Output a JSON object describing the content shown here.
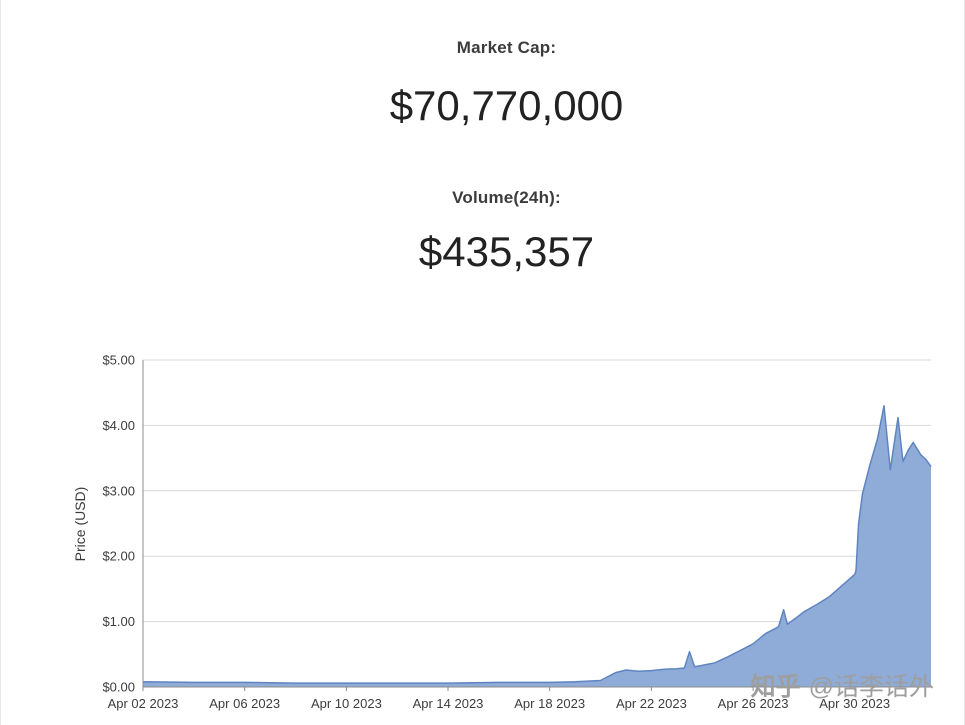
{
  "stats": {
    "market_cap_label": "Market Cap:",
    "market_cap_value": "$70,770,000",
    "volume_label": "Volume(24h):",
    "volume_value": "$435,357"
  },
  "watermark": {
    "logo": "知乎",
    "handle": "@话李话外"
  },
  "chart_data": {
    "type": "area",
    "title": "",
    "xlabel": "",
    "ylabel": "Price (USD)",
    "ylim": [
      0,
      5
    ],
    "x_range": [
      0,
      31
    ],
    "grid": true,
    "legend": "none",
    "series_name": "Price",
    "line_color": "#5f85c0",
    "fill_color": "#8fabd7",
    "grid_color": "#d9d9d9",
    "axis_color": "#8c8c8c",
    "y_ticks": [
      {
        "v": 0,
        "label": "$0.00"
      },
      {
        "v": 1,
        "label": "$1.00"
      },
      {
        "v": 2,
        "label": "$2.00"
      },
      {
        "v": 3,
        "label": "$3.00"
      },
      {
        "v": 4,
        "label": "$4.00"
      },
      {
        "v": 5,
        "label": "$5.00"
      }
    ],
    "x_ticks": [
      {
        "v": 0,
        "label": "Apr 02 2023"
      },
      {
        "v": 4,
        "label": "Apr 06 2023"
      },
      {
        "v": 8,
        "label": "Apr 10 2023"
      },
      {
        "v": 12,
        "label": "Apr 14 2023"
      },
      {
        "v": 16,
        "label": "Apr 18 2023"
      },
      {
        "v": 20,
        "label": "Apr 22 2023"
      },
      {
        "v": 24,
        "label": "Apr 26 2023"
      },
      {
        "v": 28,
        "label": "Apr 30 2023"
      }
    ],
    "points": [
      [
        0,
        0.08
      ],
      [
        2,
        0.07
      ],
      [
        4,
        0.07
      ],
      [
        6,
        0.06
      ],
      [
        8,
        0.06
      ],
      [
        10,
        0.06
      ],
      [
        12,
        0.06
      ],
      [
        14,
        0.07
      ],
      [
        16,
        0.07
      ],
      [
        17,
        0.08
      ],
      [
        18,
        0.1
      ],
      [
        18.6,
        0.22
      ],
      [
        19,
        0.26
      ],
      [
        19.5,
        0.24
      ],
      [
        20,
        0.25
      ],
      [
        20.5,
        0.27
      ],
      [
        21,
        0.28
      ],
      [
        21.3,
        0.29
      ],
      [
        21.5,
        0.54
      ],
      [
        21.7,
        0.31
      ],
      [
        22,
        0.33
      ],
      [
        22.5,
        0.37
      ],
      [
        23,
        0.46
      ],
      [
        23.5,
        0.56
      ],
      [
        24,
        0.66
      ],
      [
        24.5,
        0.82
      ],
      [
        25,
        0.92
      ],
      [
        25.2,
        1.18
      ],
      [
        25.35,
        0.96
      ],
      [
        25.7,
        1.06
      ],
      [
        26,
        1.15
      ],
      [
        26.5,
        1.26
      ],
      [
        27,
        1.38
      ],
      [
        27.5,
        1.55
      ],
      [
        28,
        1.72
      ],
      [
        28.05,
        1.78
      ],
      [
        28.15,
        2.5
      ],
      [
        28.3,
        2.95
      ],
      [
        28.6,
        3.4
      ],
      [
        28.9,
        3.8
      ],
      [
        29.15,
        4.3
      ],
      [
        29.4,
        3.32
      ],
      [
        29.7,
        4.12
      ],
      [
        29.9,
        3.45
      ],
      [
        30.1,
        3.62
      ],
      [
        30.3,
        3.74
      ],
      [
        30.6,
        3.55
      ],
      [
        30.8,
        3.48
      ],
      [
        31,
        3.37
      ]
    ]
  }
}
